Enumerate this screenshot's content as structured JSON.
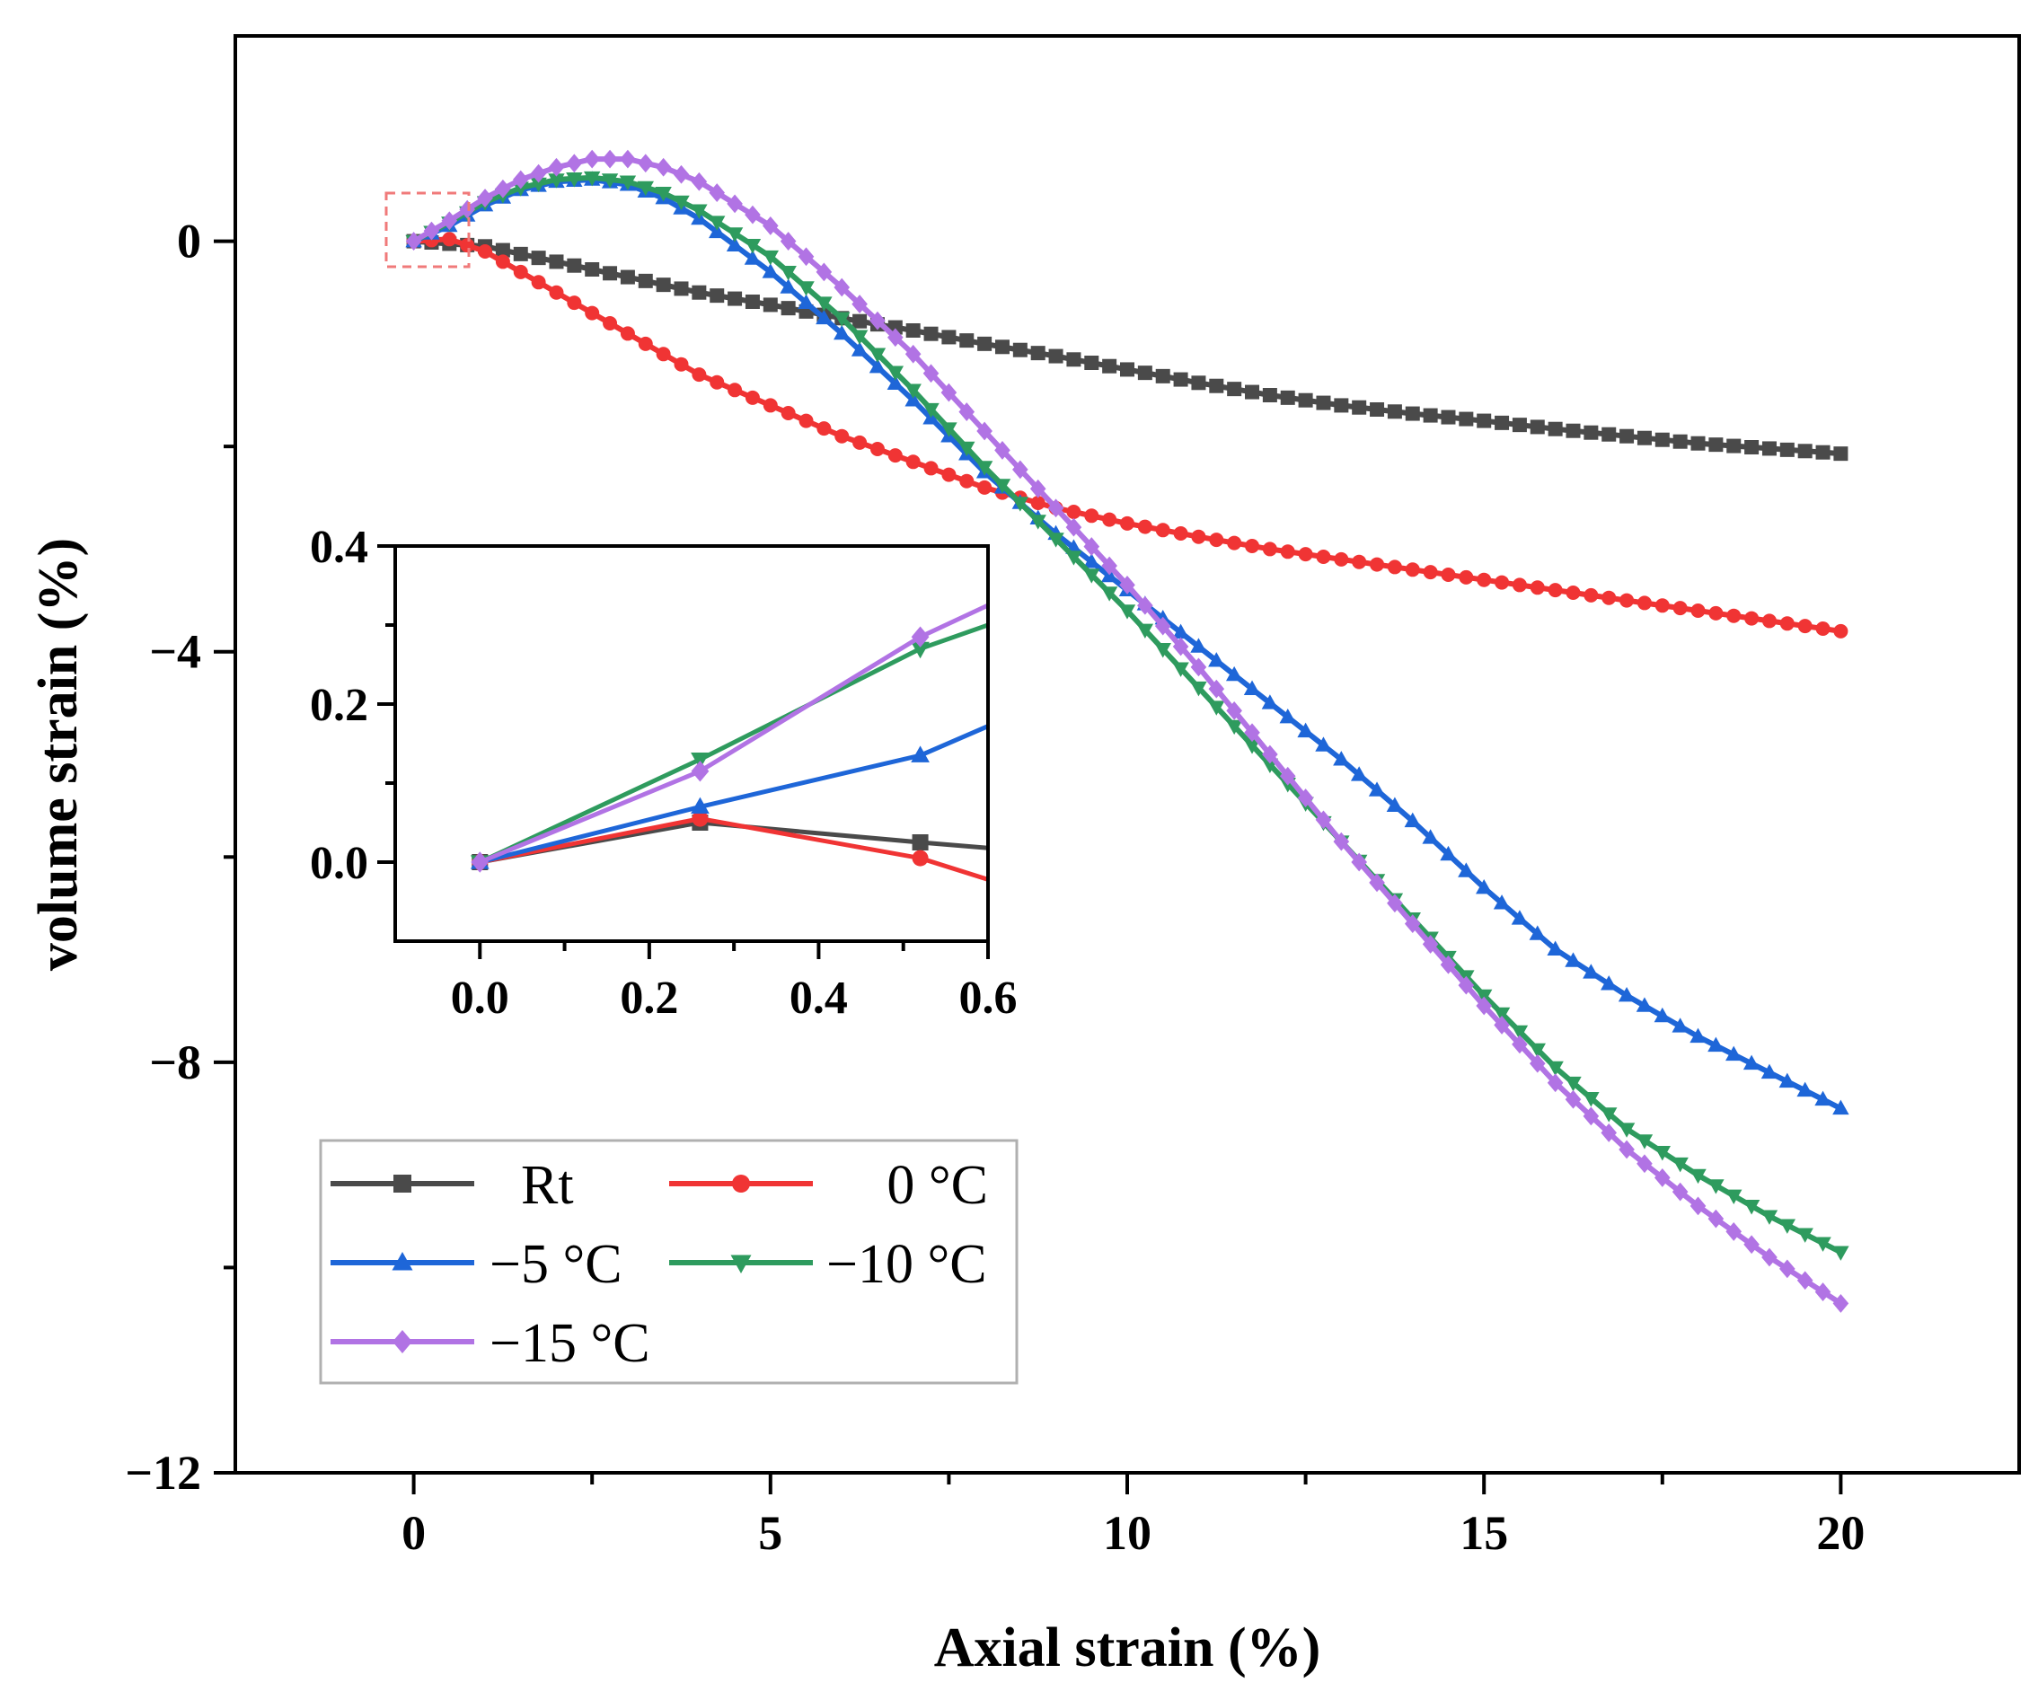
{
  "chart_data": [
    {
      "type": "line",
      "role": "main",
      "xlabel": "Axial strain (%)",
      "ylabel": "volume strain (%)",
      "xlim": [
        -2.5,
        22.5
      ],
      "ylim": [
        -12,
        2
      ],
      "xticks": [
        0,
        5,
        10,
        15,
        20
      ],
      "xtick_labels": [
        "0",
        "5",
        "10",
        "15",
        "20"
      ],
      "yticks": [
        0,
        -4,
        -8,
        -12
      ],
      "ytick_labels": [
        "0",
        "−4",
        "−8",
        "−12"
      ],
      "grid": false,
      "legend_position": "bottom-left",
      "series": [
        {
          "name": "Rt",
          "color": "#4a4a4a",
          "marker": "square",
          "points": [
            [
              0,
              0
            ],
            [
              1,
              -0.05
            ],
            [
              2,
              -0.2
            ],
            [
              3,
              -0.35
            ],
            [
              4,
              -0.5
            ],
            [
              5,
              -0.62
            ],
            [
              6,
              -0.75
            ],
            [
              7,
              -0.87
            ],
            [
              8,
              -1.0
            ],
            [
              9,
              -1.12
            ],
            [
              10,
              -1.25
            ],
            [
              11,
              -1.38
            ],
            [
              12,
              -1.5
            ],
            [
              13,
              -1.6
            ],
            [
              14,
              -1.68
            ],
            [
              15,
              -1.75
            ],
            [
              16,
              -1.83
            ],
            [
              17,
              -1.9
            ],
            [
              18,
              -1.97
            ],
            [
              19,
              -2.02
            ],
            [
              20,
              -2.07
            ]
          ]
        },
        {
          "name": "0 °C",
          "color": "#f03434",
          "marker": "circle",
          "points": [
            [
              0,
              0
            ],
            [
              0.5,
              0.02
            ],
            [
              1,
              -0.1
            ],
            [
              2,
              -0.5
            ],
            [
              3,
              -0.9
            ],
            [
              4,
              -1.3
            ],
            [
              5,
              -1.6
            ],
            [
              6,
              -1.9
            ],
            [
              7,
              -2.15
            ],
            [
              8,
              -2.4
            ],
            [
              9,
              -2.6
            ],
            [
              10,
              -2.75
            ],
            [
              11,
              -2.88
            ],
            [
              12,
              -3.0
            ],
            [
              13,
              -3.1
            ],
            [
              14,
              -3.2
            ],
            [
              15,
              -3.3
            ],
            [
              16,
              -3.4
            ],
            [
              17,
              -3.5
            ],
            [
              18,
              -3.6
            ],
            [
              19,
              -3.7
            ],
            [
              20,
              -3.8
            ]
          ]
        },
        {
          "name": "−5 °C",
          "color": "#1e66d8",
          "marker": "triangle-up",
          "points": [
            [
              0,
              0
            ],
            [
              0.5,
              0.15
            ],
            [
              1,
              0.35
            ],
            [
              1.5,
              0.5
            ],
            [
              2,
              0.58
            ],
            [
              2.5,
              0.6
            ],
            [
              3,
              0.55
            ],
            [
              3.5,
              0.42
            ],
            [
              4,
              0.22
            ],
            [
              5,
              -0.3
            ],
            [
              6,
              -0.9
            ],
            [
              7,
              -1.55
            ],
            [
              8,
              -2.25
            ],
            [
              9,
              -2.85
            ],
            [
              10,
              -3.4
            ],
            [
              11,
              -3.95
            ],
            [
              12,
              -4.5
            ],
            [
              13,
              -5.05
            ],
            [
              14,
              -5.65
            ],
            [
              15,
              -6.3
            ],
            [
              16,
              -6.9
            ],
            [
              17,
              -7.35
            ],
            [
              18,
              -7.75
            ],
            [
              19,
              -8.1
            ],
            [
              20,
              -8.45
            ]
          ]
        },
        {
          "name": "−10 °C",
          "color": "#2e9b5e",
          "marker": "triangle-down",
          "points": [
            [
              0,
              0
            ],
            [
              0.5,
              0.18
            ],
            [
              1,
              0.38
            ],
            [
              1.5,
              0.52
            ],
            [
              2,
              0.6
            ],
            [
              2.5,
              0.62
            ],
            [
              3,
              0.58
            ],
            [
              3.5,
              0.47
            ],
            [
              4,
              0.3
            ],
            [
              5,
              -0.15
            ],
            [
              6,
              -0.75
            ],
            [
              7,
              -1.45
            ],
            [
              8,
              -2.2
            ],
            [
              9,
              -2.9
            ],
            [
              10,
              -3.6
            ],
            [
              11,
              -4.35
            ],
            [
              12,
              -5.1
            ],
            [
              13,
              -5.85
            ],
            [
              14,
              -6.6
            ],
            [
              15,
              -7.35
            ],
            [
              16,
              -8.05
            ],
            [
              17,
              -8.65
            ],
            [
              18,
              -9.1
            ],
            [
              19,
              -9.5
            ],
            [
              20,
              -9.85
            ]
          ]
        },
        {
          "name": "−15 °C",
          "color": "#b173e4",
          "marker": "diamond",
          "points": [
            [
              0,
              0
            ],
            [
              0.5,
              0.2
            ],
            [
              1,
              0.42
            ],
            [
              1.5,
              0.6
            ],
            [
              2,
              0.72
            ],
            [
              2.5,
              0.8
            ],
            [
              3,
              0.8
            ],
            [
              3.5,
              0.72
            ],
            [
              4,
              0.58
            ],
            [
              5,
              0.15
            ],
            [
              6,
              -0.45
            ],
            [
              7,
              -1.1
            ],
            [
              8,
              -1.85
            ],
            [
              9,
              -2.6
            ],
            [
              10,
              -3.35
            ],
            [
              11,
              -4.15
            ],
            [
              12,
              -5.0
            ],
            [
              13,
              -5.85
            ],
            [
              14,
              -6.65
            ],
            [
              15,
              -7.45
            ],
            [
              16,
              -8.2
            ],
            [
              17,
              -8.85
            ],
            [
              18,
              -9.4
            ],
            [
              19,
              -9.9
            ],
            [
              20,
              -10.35
            ]
          ]
        }
      ]
    },
    {
      "type": "line",
      "role": "inset",
      "xlim": [
        -0.1,
        0.6
      ],
      "ylim": [
        -0.1,
        0.4
      ],
      "xticks": [
        0.0,
        0.2,
        0.4,
        0.6
      ],
      "xtick_labels": [
        "0.0",
        "0.2",
        "0.4",
        "0.6"
      ],
      "yticks": [
        0.0,
        0.2,
        0.4
      ],
      "ytick_labels": [
        "0.0",
        "0.2",
        "0.4"
      ],
      "grid": false,
      "series": [
        {
          "name": "Rt",
          "color": "#4a4a4a",
          "marker": "square",
          "points": [
            [
              0,
              0
            ],
            [
              0.26,
              0.05
            ],
            [
              0.52,
              0.025
            ],
            [
              0.6,
              0.018
            ]
          ]
        },
        {
          "name": "0 °C",
          "color": "#f03434",
          "marker": "circle",
          "points": [
            [
              0,
              0
            ],
            [
              0.26,
              0.055
            ],
            [
              0.52,
              0.005
            ],
            [
              0.6,
              -0.022
            ]
          ]
        },
        {
          "name": "−5 °C",
          "color": "#1e66d8",
          "marker": "triangle-up",
          "points": [
            [
              0,
              0
            ],
            [
              0.26,
              0.07
            ],
            [
              0.52,
              0.135
            ],
            [
              0.6,
              0.172
            ]
          ]
        },
        {
          "name": "−10 °C",
          "color": "#2e9b5e",
          "marker": "triangle-down",
          "points": [
            [
              0,
              0
            ],
            [
              0.26,
              0.13
            ],
            [
              0.52,
              0.27
            ],
            [
              0.6,
              0.3
            ]
          ]
        },
        {
          "name": "−15 °C",
          "color": "#b173e4",
          "marker": "diamond",
          "points": [
            [
              0,
              0
            ],
            [
              0.26,
              0.115
            ],
            [
              0.52,
              0.285
            ],
            [
              0.6,
              0.325
            ]
          ]
        }
      ]
    }
  ]
}
